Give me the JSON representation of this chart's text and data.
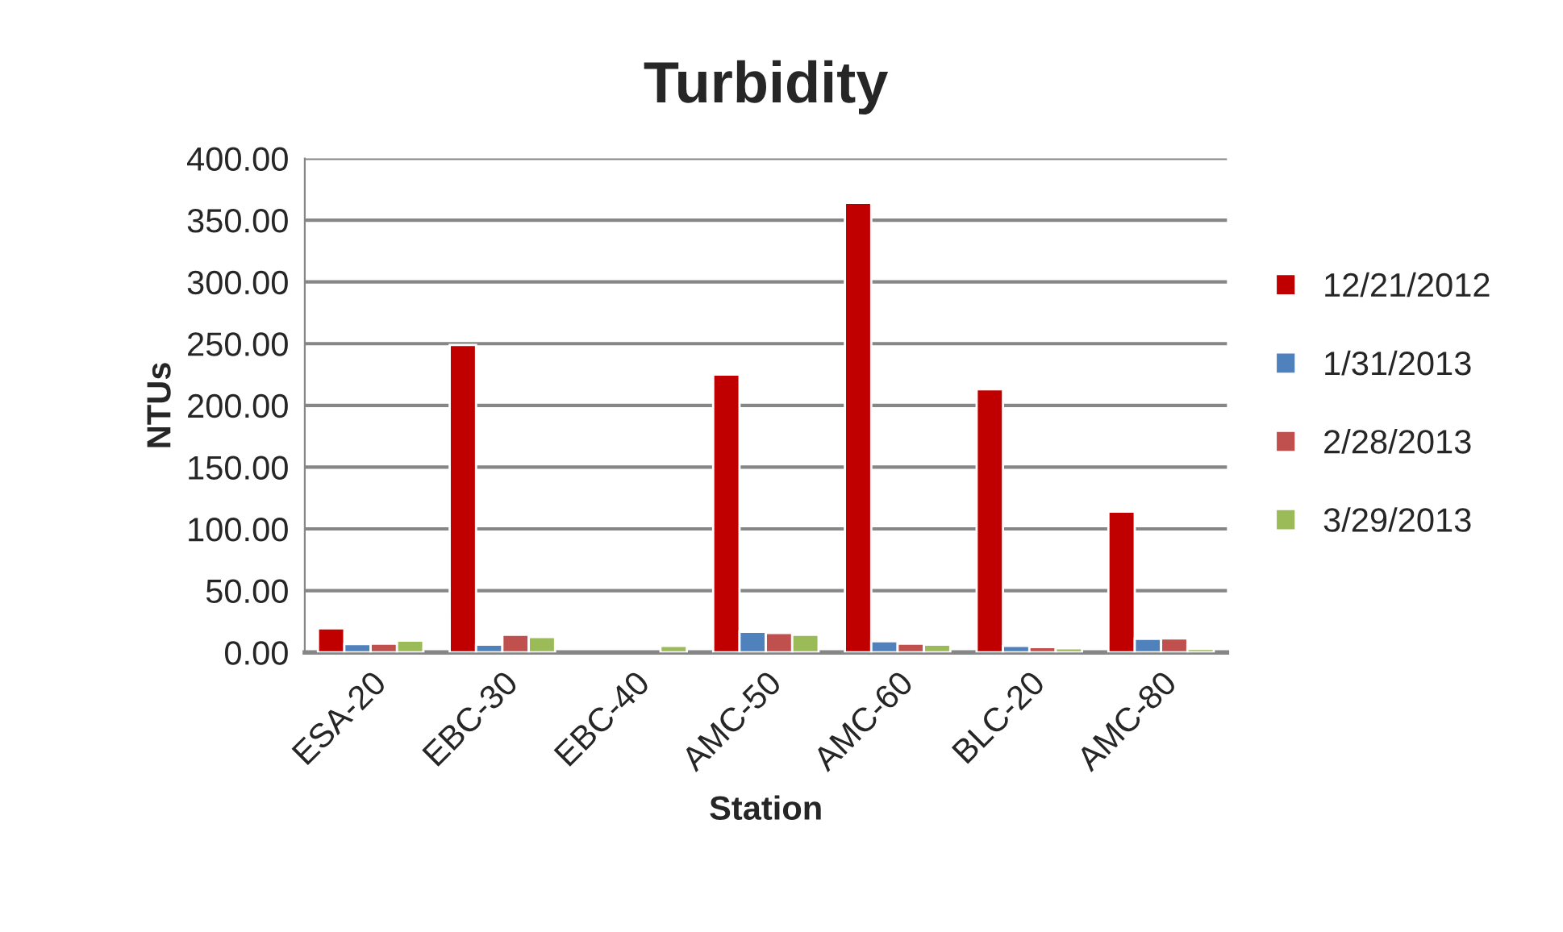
{
  "chart_data": {
    "type": "bar",
    "title": "Turbidity",
    "xlabel": "Station",
    "ylabel": "NTUs",
    "categories": [
      "ESA-20",
      "EBC-30",
      "EBC-40",
      "AMC-50",
      "AMC-60",
      "BLC-20",
      "AMC-80"
    ],
    "series": [
      {
        "name": "12/21/2012",
        "color": "#c00000",
        "values": [
          19.5,
          249,
          null,
          225,
          364,
          213,
          114
        ]
      },
      {
        "name": "1/31/2013",
        "color": "#4f81bd",
        "values": [
          6.7,
          6.2,
          null,
          16.7,
          9,
          5.2,
          11
        ]
      },
      {
        "name": "2/28/2013",
        "color": "#c0504d",
        "values": [
          7,
          14.3,
          null,
          15.7,
          7.1,
          4.3,
          11.4
        ]
      },
      {
        "name": "3/29/2013",
        "color": "#9bbb59",
        "values": [
          9.5,
          12.4,
          5.2,
          14.3,
          6.2,
          3.3,
          2.9
        ]
      }
    ],
    "ylim": [
      0,
      400
    ],
    "yticks": [
      {
        "value": 0,
        "label": "0.00"
      },
      {
        "value": 50,
        "label": "50.00"
      },
      {
        "value": 100,
        "label": "100.00"
      },
      {
        "value": 150,
        "label": "150.00"
      },
      {
        "value": 200,
        "label": "200.00"
      },
      {
        "value": 250,
        "label": "250.00"
      },
      {
        "value": 300,
        "label": "300.00"
      },
      {
        "value": 350,
        "label": "350.00"
      },
      {
        "value": 400,
        "label": "400.00"
      }
    ],
    "grid": "y",
    "legend": "right"
  }
}
